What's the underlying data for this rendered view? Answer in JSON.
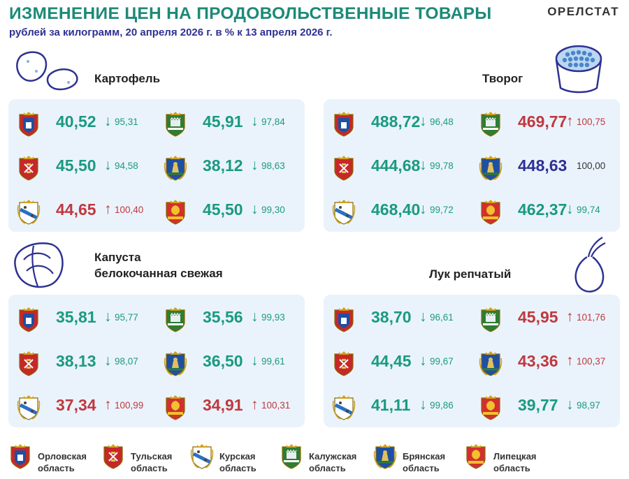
{
  "header": {
    "title": "ИЗМЕНЕНИЕ ЦЕН НА ПРОДОВОЛЬСТВЕННЫЕ ТОВАРЫ",
    "subtitle": "рублей за килограмм, 20 апреля 2026 г. в % к 13 апреля 2026 г.",
    "brand": "ОРЕЛСТАТ"
  },
  "colors": {
    "down": "#1a9a82",
    "up": "#c0383f",
    "same": "#2e3192",
    "panel": "#eaf3fb",
    "title": "#1c8a77"
  },
  "sections": [
    {
      "name_lines": [
        "Картофель"
      ],
      "icon": "potato-icon",
      "cells": [
        {
          "region": "orel",
          "price": "40,52",
          "arrow": "↓",
          "pct": "95,31",
          "trend": "down"
        },
        {
          "region": "kaluga",
          "price": "45,91",
          "arrow": "↓",
          "pct": "97,84",
          "trend": "down"
        },
        {
          "region": "tula",
          "price": "45,50",
          "arrow": "↓",
          "pct": "94,58",
          "trend": "down"
        },
        {
          "region": "bryansk",
          "price": "38,12",
          "arrow": "↓",
          "pct": "98,63",
          "trend": "down"
        },
        {
          "region": "kursk",
          "price": "44,65",
          "arrow": "↑",
          "pct": "100,40",
          "trend": "up"
        },
        {
          "region": "lipetsk",
          "price": "45,50",
          "arrow": "↓",
          "pct": "99,30",
          "trend": "down"
        }
      ]
    },
    {
      "name_lines": [
        "Творог"
      ],
      "icon": "cottage-cheese-icon",
      "cells": [
        {
          "region": "orel",
          "price": "488,72",
          "arrow": "↓",
          "pct": "96,48",
          "trend": "down"
        },
        {
          "region": "kaluga",
          "price": "469,77",
          "arrow": "↑",
          "pct": "100,75",
          "trend": "up"
        },
        {
          "region": "tula",
          "price": "444,68",
          "arrow": "↓",
          "pct": "99,78",
          "trend": "down"
        },
        {
          "region": "bryansk",
          "price": "448,63",
          "arrow": "",
          "pct": "100,00",
          "trend": "same"
        },
        {
          "region": "kursk",
          "price": "468,40",
          "arrow": "↓",
          "pct": "99,72",
          "trend": "down"
        },
        {
          "region": "lipetsk",
          "price": "462,37",
          "arrow": "↓",
          "pct": "99,74",
          "trend": "down"
        }
      ]
    },
    {
      "name_lines": [
        "Капуста",
        "белокочанная свежая"
      ],
      "icon": "cabbage-icon",
      "cells": [
        {
          "region": "orel",
          "price": "35,81",
          "arrow": "↓",
          "pct": "95,77",
          "trend": "down"
        },
        {
          "region": "kaluga",
          "price": "35,56",
          "arrow": "↓",
          "pct": "99,93",
          "trend": "down"
        },
        {
          "region": "tula",
          "price": "38,13",
          "arrow": "↓",
          "pct": "98,07",
          "trend": "down"
        },
        {
          "region": "bryansk",
          "price": "36,50",
          "arrow": "↓",
          "pct": "99,61",
          "trend": "down"
        },
        {
          "region": "kursk",
          "price": "37,34",
          "arrow": "↑",
          "pct": "100,99",
          "trend": "up"
        },
        {
          "region": "lipetsk",
          "price": "34,91",
          "arrow": "↑",
          "pct": "100,31",
          "trend": "up"
        }
      ]
    },
    {
      "name_lines": [
        "Лук репчатый"
      ],
      "icon": "onion-icon",
      "cells": [
        {
          "region": "orel",
          "price": "38,70",
          "arrow": "↓",
          "pct": "96,61",
          "trend": "down"
        },
        {
          "region": "kaluga",
          "price": "45,95",
          "arrow": "↑",
          "pct": "101,76",
          "trend": "up"
        },
        {
          "region": "tula",
          "price": "44,45",
          "arrow": "↓",
          "pct": "99,67",
          "trend": "down"
        },
        {
          "region": "bryansk",
          "price": "43,36",
          "arrow": "↑",
          "pct": "100,37",
          "trend": "up"
        },
        {
          "region": "kursk",
          "price": "41,11",
          "arrow": "↓",
          "pct": "99,86",
          "trend": "down"
        },
        {
          "region": "lipetsk",
          "price": "39,77",
          "arrow": "↓",
          "pct": "98,97",
          "trend": "down"
        }
      ]
    }
  ],
  "legend": [
    {
      "region": "orel",
      "line1": "Орловская",
      "line2": "область"
    },
    {
      "region": "tula",
      "line1": "Тульская",
      "line2": "область"
    },
    {
      "region": "kursk",
      "line1": "Курская",
      "line2": "область"
    },
    {
      "region": "kaluga",
      "line1": "Калужская",
      "line2": "область"
    },
    {
      "region": "bryansk",
      "line1": "Брянская",
      "line2": "область"
    },
    {
      "region": "lipetsk",
      "line1": "Липецкая",
      "line2": "область"
    }
  ]
}
